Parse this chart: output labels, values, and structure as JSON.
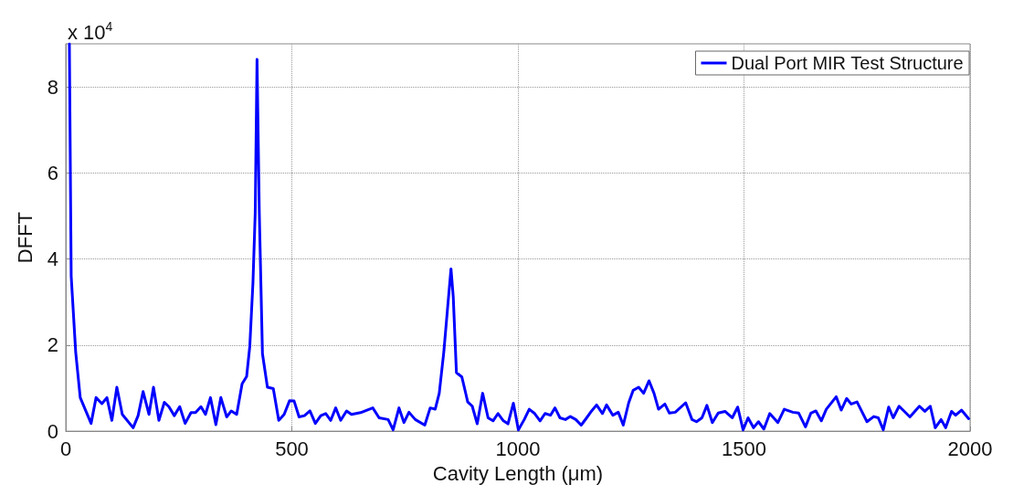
{
  "chart_data": {
    "type": "line",
    "xlabel": "Cavity Length (μm)",
    "ylabel": "DFFT",
    "annotations": [
      "x 10$^{4}$"
    ],
    "x": [
      8,
      12,
      22,
      32,
      56,
      67,
      80,
      91,
      102,
      113,
      125,
      149,
      160,
      171,
      184,
      194,
      206,
      218,
      228,
      240,
      252,
      264,
      277,
      287,
      299,
      309,
      320,
      332,
      343,
      356,
      366,
      378,
      390,
      400,
      407,
      414,
      419,
      423,
      428,
      435,
      446,
      459,
      471,
      483,
      495,
      505,
      516,
      528,
      540,
      552,
      564,
      575,
      586,
      597,
      608,
      621,
      632,
      652,
      679,
      693,
      713,
      724,
      737,
      748,
      759,
      773,
      794,
      806,
      817,
      826,
      836,
      846,
      852,
      857,
      864,
      876,
      889,
      899,
      910,
      922,
      934,
      945,
      956,
      968,
      978,
      990,
      1001,
      1014,
      1025,
      1037,
      1049,
      1060,
      1072,
      1082,
      1093,
      1105,
      1116,
      1128,
      1140,
      1152,
      1163,
      1174,
      1187,
      1196,
      1210,
      1222,
      1233,
      1245,
      1255,
      1267,
      1278,
      1290,
      1301,
      1311,
      1325,
      1335,
      1348,
      1371,
      1385,
      1395,
      1407,
      1418,
      1430,
      1443,
      1458,
      1474,
      1486,
      1498,
      1509,
      1521,
      1532,
      1544,
      1557,
      1575,
      1589,
      1608,
      1621,
      1636,
      1648,
      1659,
      1671,
      1682,
      1704,
      1715,
      1727,
      1737,
      1750,
      1772,
      1787,
      1797,
      1808,
      1820,
      1830,
      1843,
      1867,
      1888,
      1900,
      1912,
      1923,
      1936,
      1946,
      1959,
      1968,
      1981,
      1997
    ],
    "series": [
      {
        "name": "Dual Port MIR Test Structure",
        "color": "#0000ff",
        "values": [
          9,
          3.6,
          1.83,
          0.78,
          0.18,
          0.78,
          0.64,
          0.78,
          0.25,
          1.02,
          0.39,
          0.08,
          0.36,
          0.92,
          0.39,
          1.02,
          0.25,
          0.67,
          0.57,
          0.36,
          0.57,
          0.18,
          0.43,
          0.43,
          0.57,
          0.39,
          0.78,
          0.15,
          0.78,
          0.33,
          0.47,
          0.39,
          1.1,
          1.27,
          1.97,
          3.45,
          5.07,
          8.64,
          5.1,
          1.8,
          1.02,
          0.99,
          0.25,
          0.39,
          0.71,
          0.7,
          0.33,
          0.36,
          0.47,
          0.18,
          0.36,
          0.41,
          0.25,
          0.54,
          0.25,
          0.47,
          0.39,
          0.43,
          0.54,
          0.31,
          0.27,
          0.03,
          0.54,
          0.2,
          0.44,
          0.27,
          0.14,
          0.54,
          0.51,
          0.88,
          1.83,
          3.05,
          3.77,
          3.12,
          1.36,
          1.26,
          0.68,
          0.58,
          0.17,
          0.88,
          0.31,
          0.24,
          0.41,
          0.24,
          0.17,
          0.65,
          0.03,
          0.27,
          0.51,
          0.41,
          0.24,
          0.41,
          0.37,
          0.54,
          0.31,
          0.27,
          0.34,
          0.27,
          0.14,
          0.31,
          0.47,
          0.61,
          0.41,
          0.61,
          0.37,
          0.44,
          0.14,
          0.66,
          0.95,
          1.02,
          0.88,
          1.17,
          0.88,
          0.51,
          0.63,
          0.42,
          0.44,
          0.66,
          0.27,
          0.22,
          0.31,
          0.6,
          0.2,
          0.42,
          0.46,
          0.31,
          0.56,
          0.03,
          0.31,
          0.08,
          0.22,
          0.05,
          0.41,
          0.2,
          0.51,
          0.44,
          0.42,
          0.1,
          0.42,
          0.47,
          0.24,
          0.51,
          0.8,
          0.49,
          0.76,
          0.63,
          0.68,
          0.22,
          0.34,
          0.31,
          0.03,
          0.56,
          0.31,
          0.58,
          0.33,
          0.58,
          0.46,
          0.58,
          0.08,
          0.27,
          0.08,
          0.46,
          0.37,
          0.49,
          0.29
        ]
      }
    ],
    "xlim": [
      0,
      2000
    ],
    "xticks": [
      0,
      500,
      1000,
      1500,
      2000
    ],
    "ylim": [
      0,
      9
    ],
    "yticks": [
      0,
      2,
      4,
      6,
      8
    ],
    "grid": true,
    "legend": "top right",
    "marker": "none",
    "line_style": "solid"
  }
}
